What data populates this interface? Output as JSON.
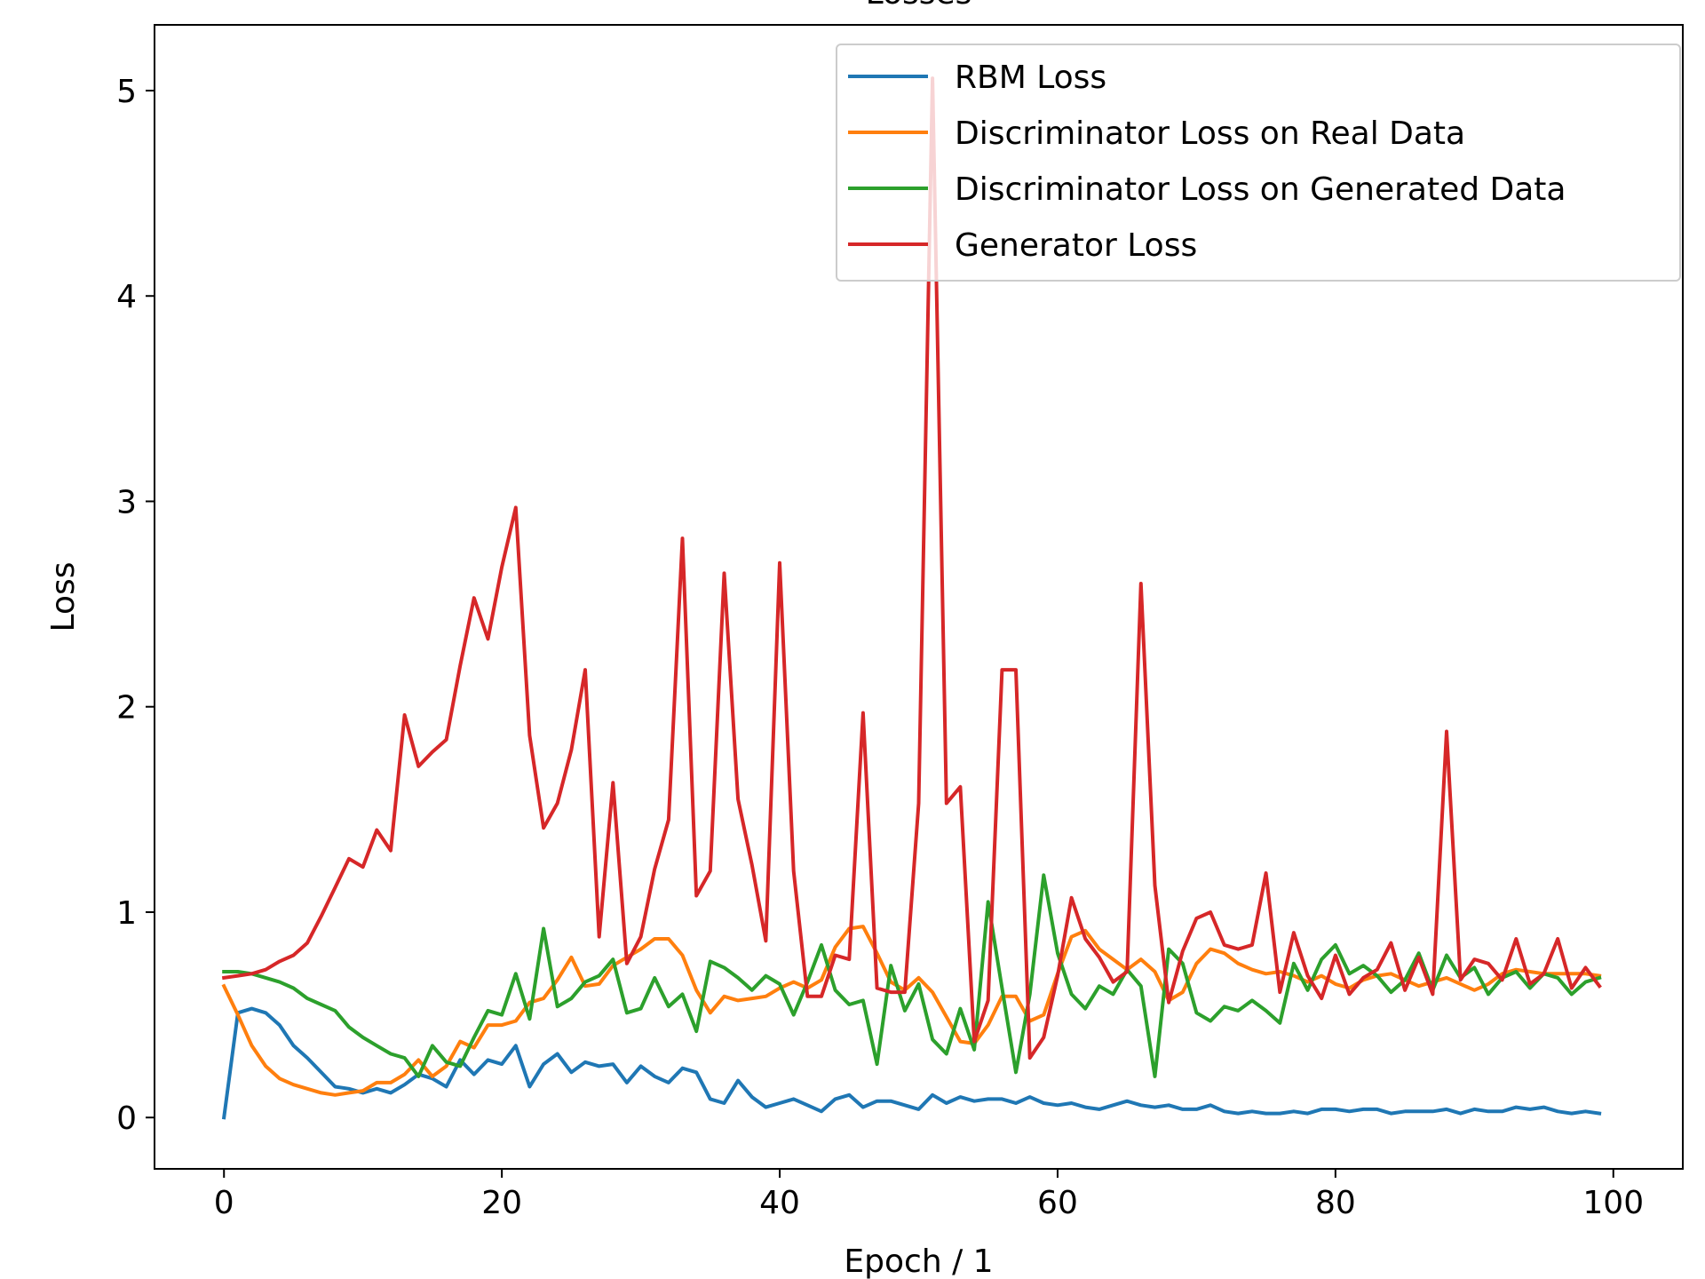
{
  "chart_data": {
    "type": "line",
    "title": "Losses",
    "xlabel": "Epoch / 1",
    "ylabel": "Loss",
    "xlim": [
      -5,
      105
    ],
    "ylim": [
      -0.25,
      5.32
    ],
    "xticks": [
      0,
      20,
      40,
      60,
      80,
      100
    ],
    "yticks": [
      0,
      1,
      2,
      3,
      4,
      5
    ],
    "grid": false,
    "legend_position": "top-right",
    "x": [
      0,
      1,
      2,
      3,
      4,
      5,
      6,
      7,
      8,
      9,
      10,
      11,
      12,
      13,
      14,
      15,
      16,
      17,
      18,
      19,
      20,
      21,
      22,
      23,
      24,
      25,
      26,
      27,
      28,
      29,
      30,
      31,
      32,
      33,
      34,
      35,
      36,
      37,
      38,
      39,
      40,
      41,
      42,
      43,
      44,
      45,
      46,
      47,
      48,
      49,
      50,
      51,
      52,
      53,
      54,
      55,
      56,
      57,
      58,
      59,
      60,
      61,
      62,
      63,
      64,
      65,
      66,
      67,
      68,
      69,
      70,
      71,
      72,
      73,
      74,
      75,
      76,
      77,
      78,
      79,
      80,
      81,
      82,
      83,
      84,
      85,
      86,
      87,
      88,
      89,
      90,
      91,
      92,
      93,
      94,
      95,
      96,
      97,
      98,
      99
    ],
    "series": [
      {
        "name": "RBM Loss",
        "color": "#1f77b4",
        "values": [
          0.0,
          0.51,
          0.53,
          0.51,
          0.45,
          0.35,
          0.29,
          0.22,
          0.15,
          0.14,
          0.12,
          0.14,
          0.12,
          0.16,
          0.21,
          0.19,
          0.15,
          0.28,
          0.21,
          0.28,
          0.26,
          0.35,
          0.15,
          0.26,
          0.31,
          0.22,
          0.27,
          0.25,
          0.26,
          0.17,
          0.25,
          0.2,
          0.17,
          0.24,
          0.22,
          0.09,
          0.07,
          0.18,
          0.1,
          0.05,
          0.07,
          0.09,
          0.06,
          0.03,
          0.09,
          0.11,
          0.05,
          0.08,
          0.08,
          0.06,
          0.04,
          0.11,
          0.07,
          0.1,
          0.08,
          0.09,
          0.09,
          0.07,
          0.1,
          0.07,
          0.06,
          0.07,
          0.05,
          0.04,
          0.06,
          0.08,
          0.06,
          0.05,
          0.06,
          0.04,
          0.04,
          0.06,
          0.03,
          0.02,
          0.03,
          0.02,
          0.02,
          0.03,
          0.02,
          0.04,
          0.04,
          0.03,
          0.04,
          0.04,
          0.02,
          0.03,
          0.03,
          0.03,
          0.04,
          0.02,
          0.04,
          0.03,
          0.03,
          0.05,
          0.04,
          0.05,
          0.03,
          0.02,
          0.03,
          0.02
        ]
      },
      {
        "name": "Discriminator Loss on Real Data",
        "color": "#ff7f0e",
        "values": [
          0.64,
          0.5,
          0.35,
          0.25,
          0.19,
          0.16,
          0.14,
          0.12,
          0.11,
          0.12,
          0.13,
          0.17,
          0.17,
          0.21,
          0.28,
          0.2,
          0.25,
          0.37,
          0.34,
          0.45,
          0.45,
          0.47,
          0.56,
          0.58,
          0.67,
          0.78,
          0.64,
          0.65,
          0.74,
          0.78,
          0.82,
          0.87,
          0.87,
          0.79,
          0.62,
          0.51,
          0.59,
          0.57,
          0.58,
          0.59,
          0.63,
          0.66,
          0.63,
          0.67,
          0.83,
          0.92,
          0.93,
          0.8,
          0.66,
          0.62,
          0.68,
          0.61,
          0.49,
          0.37,
          0.36,
          0.45,
          0.59,
          0.59,
          0.47,
          0.5,
          0.7,
          0.88,
          0.91,
          0.82,
          0.77,
          0.72,
          0.77,
          0.71,
          0.57,
          0.61,
          0.75,
          0.82,
          0.8,
          0.75,
          0.72,
          0.7,
          0.71,
          0.69,
          0.66,
          0.69,
          0.65,
          0.63,
          0.67,
          0.69,
          0.7,
          0.67,
          0.64,
          0.66,
          0.68,
          0.65,
          0.62,
          0.65,
          0.7,
          0.72,
          0.71,
          0.7,
          0.7,
          0.7,
          0.7,
          0.69
        ]
      },
      {
        "name": "Discriminator Loss on Generated Data",
        "color": "#2ca02c",
        "values": [
          0.71,
          0.71,
          0.7,
          0.68,
          0.66,
          0.63,
          0.58,
          0.55,
          0.52,
          0.44,
          0.39,
          0.35,
          0.31,
          0.29,
          0.2,
          0.35,
          0.27,
          0.25,
          0.39,
          0.52,
          0.5,
          0.7,
          0.48,
          0.92,
          0.54,
          0.58,
          0.66,
          0.69,
          0.77,
          0.51,
          0.53,
          0.68,
          0.54,
          0.6,
          0.42,
          0.76,
          0.73,
          0.68,
          0.62,
          0.69,
          0.65,
          0.5,
          0.66,
          0.84,
          0.62,
          0.55,
          0.57,
          0.26,
          0.74,
          0.52,
          0.65,
          0.38,
          0.31,
          0.53,
          0.33,
          1.05,
          0.63,
          0.22,
          0.6,
          1.18,
          0.8,
          0.6,
          0.53,
          0.64,
          0.6,
          0.72,
          0.64,
          0.2,
          0.82,
          0.75,
          0.51,
          0.47,
          0.54,
          0.52,
          0.57,
          0.52,
          0.46,
          0.75,
          0.62,
          0.77,
          0.84,
          0.7,
          0.74,
          0.69,
          0.61,
          0.67,
          0.8,
          0.62,
          0.79,
          0.68,
          0.73,
          0.6,
          0.68,
          0.71,
          0.63,
          0.7,
          0.68,
          0.6,
          0.66,
          0.68
        ]
      },
      {
        "name": "Generator Loss",
        "color": "#d62728",
        "values": [
          0.68,
          0.69,
          0.7,
          0.72,
          0.76,
          0.79,
          0.85,
          0.98,
          1.12,
          1.26,
          1.22,
          1.4,
          1.3,
          1.96,
          1.71,
          1.78,
          1.84,
          2.2,
          2.53,
          2.33,
          2.68,
          2.97,
          1.86,
          1.41,
          1.53,
          1.79,
          2.18,
          0.88,
          1.63,
          0.75,
          0.88,
          1.21,
          1.45,
          2.82,
          1.08,
          1.2,
          2.65,
          1.55,
          1.23,
          0.86,
          2.7,
          1.2,
          0.59,
          0.59,
          0.79,
          0.77,
          1.97,
          0.63,
          0.61,
          0.61,
          1.53,
          5.06,
          1.53,
          1.61,
          0.37,
          0.57,
          2.18,
          2.18,
          0.29,
          0.39,
          0.69,
          1.07,
          0.87,
          0.78,
          0.66,
          0.71,
          2.6,
          1.13,
          0.56,
          0.81,
          0.97,
          1.0,
          0.84,
          0.82,
          0.84,
          1.19,
          0.61,
          0.9,
          0.69,
          0.58,
          0.79,
          0.6,
          0.68,
          0.72,
          0.85,
          0.62,
          0.78,
          0.6,
          1.88,
          0.67,
          0.77,
          0.75,
          0.67,
          0.87,
          0.65,
          0.7,
          0.87,
          0.63,
          0.73,
          0.64
        ]
      }
    ]
  }
}
